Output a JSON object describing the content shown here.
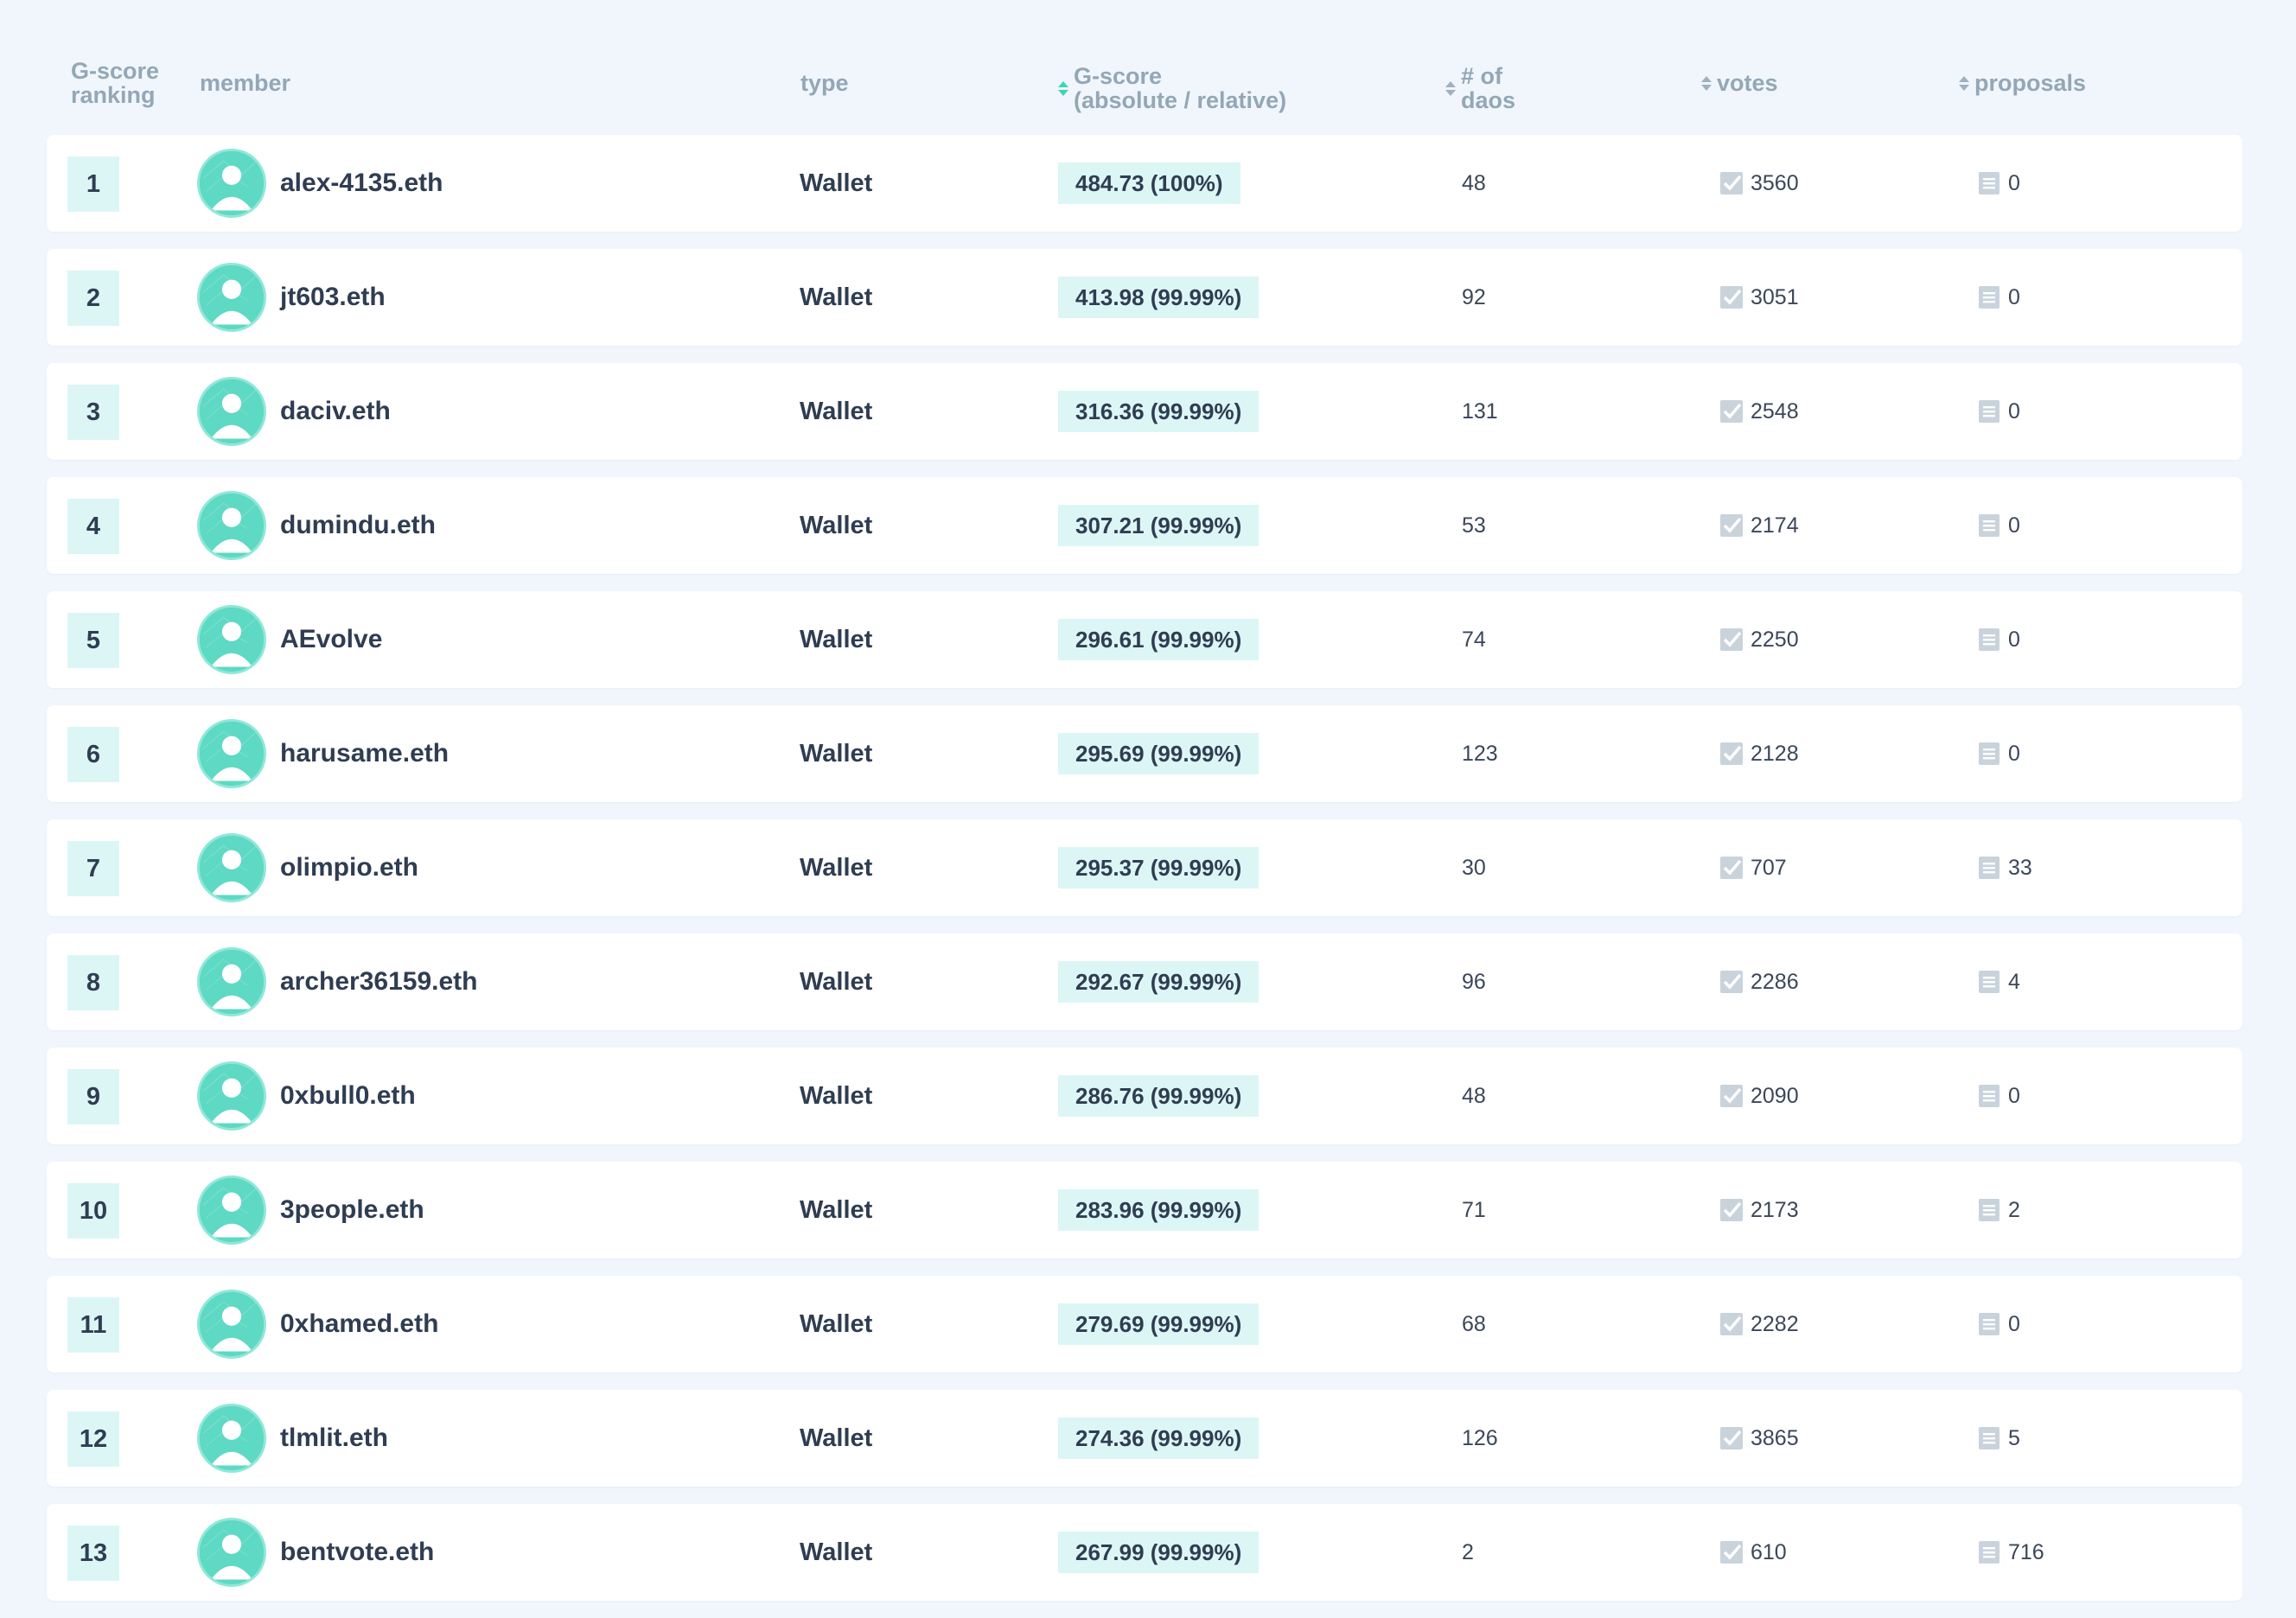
{
  "headers": {
    "ranking": "G-score\nranking",
    "member": "member",
    "type": "type",
    "gscore": "G-score\n(absolute / relative)",
    "daos": "# of\ndaos",
    "votes": "votes",
    "proposals": "proposals"
  },
  "colors": {
    "accent": "#3fd3b7",
    "badge_bg": "#dcf6f6",
    "page_bg": "#f1f6fc",
    "header_text": "#93a7b6"
  },
  "icons": {
    "avatar": "user-avatar-icon",
    "votes": "checkbox-checked-icon",
    "proposals": "document-icon",
    "sort": "sort-arrows-icon"
  },
  "rows": [
    {
      "rank": "1",
      "member": "alex-4135.eth",
      "type": "Wallet",
      "gscore": "484.73 (100%)",
      "daos": "48",
      "votes": "3560",
      "proposals": "0"
    },
    {
      "rank": "2",
      "member": "jt603.eth",
      "type": "Wallet",
      "gscore": "413.98 (99.99%)",
      "daos": "92",
      "votes": "3051",
      "proposals": "0"
    },
    {
      "rank": "3",
      "member": "daciv.eth",
      "type": "Wallet",
      "gscore": "316.36 (99.99%)",
      "daos": "131",
      "votes": "2548",
      "proposals": "0"
    },
    {
      "rank": "4",
      "member": "dumindu.eth",
      "type": "Wallet",
      "gscore": "307.21 (99.99%)",
      "daos": "53",
      "votes": "2174",
      "proposals": "0"
    },
    {
      "rank": "5",
      "member": "AEvolve",
      "type": "Wallet",
      "gscore": "296.61 (99.99%)",
      "daos": "74",
      "votes": "2250",
      "proposals": "0"
    },
    {
      "rank": "6",
      "member": "harusame.eth",
      "type": "Wallet",
      "gscore": "295.69 (99.99%)",
      "daos": "123",
      "votes": "2128",
      "proposals": "0"
    },
    {
      "rank": "7",
      "member": "olimpio.eth",
      "type": "Wallet",
      "gscore": "295.37 (99.99%)",
      "daos": "30",
      "votes": "707",
      "proposals": "33"
    },
    {
      "rank": "8",
      "member": "archer36159.eth",
      "type": "Wallet",
      "gscore": "292.67 (99.99%)",
      "daos": "96",
      "votes": "2286",
      "proposals": "4"
    },
    {
      "rank": "9",
      "member": "0xbull0.eth",
      "type": "Wallet",
      "gscore": "286.76 (99.99%)",
      "daos": "48",
      "votes": "2090",
      "proposals": "0"
    },
    {
      "rank": "10",
      "member": "3people.eth",
      "type": "Wallet",
      "gscore": "283.96 (99.99%)",
      "daos": "71",
      "votes": "2173",
      "proposals": "2"
    },
    {
      "rank": "11",
      "member": "0xhamed.eth",
      "type": "Wallet",
      "gscore": "279.69 (99.99%)",
      "daos": "68",
      "votes": "2282",
      "proposals": "0"
    },
    {
      "rank": "12",
      "member": "tlmlit.eth",
      "type": "Wallet",
      "gscore": "274.36 (99.99%)",
      "daos": "126",
      "votes": "3865",
      "proposals": "5"
    },
    {
      "rank": "13",
      "member": "bentvote.eth",
      "type": "Wallet",
      "gscore": "267.99 (99.99%)",
      "daos": "2",
      "votes": "610",
      "proposals": "716"
    }
  ]
}
